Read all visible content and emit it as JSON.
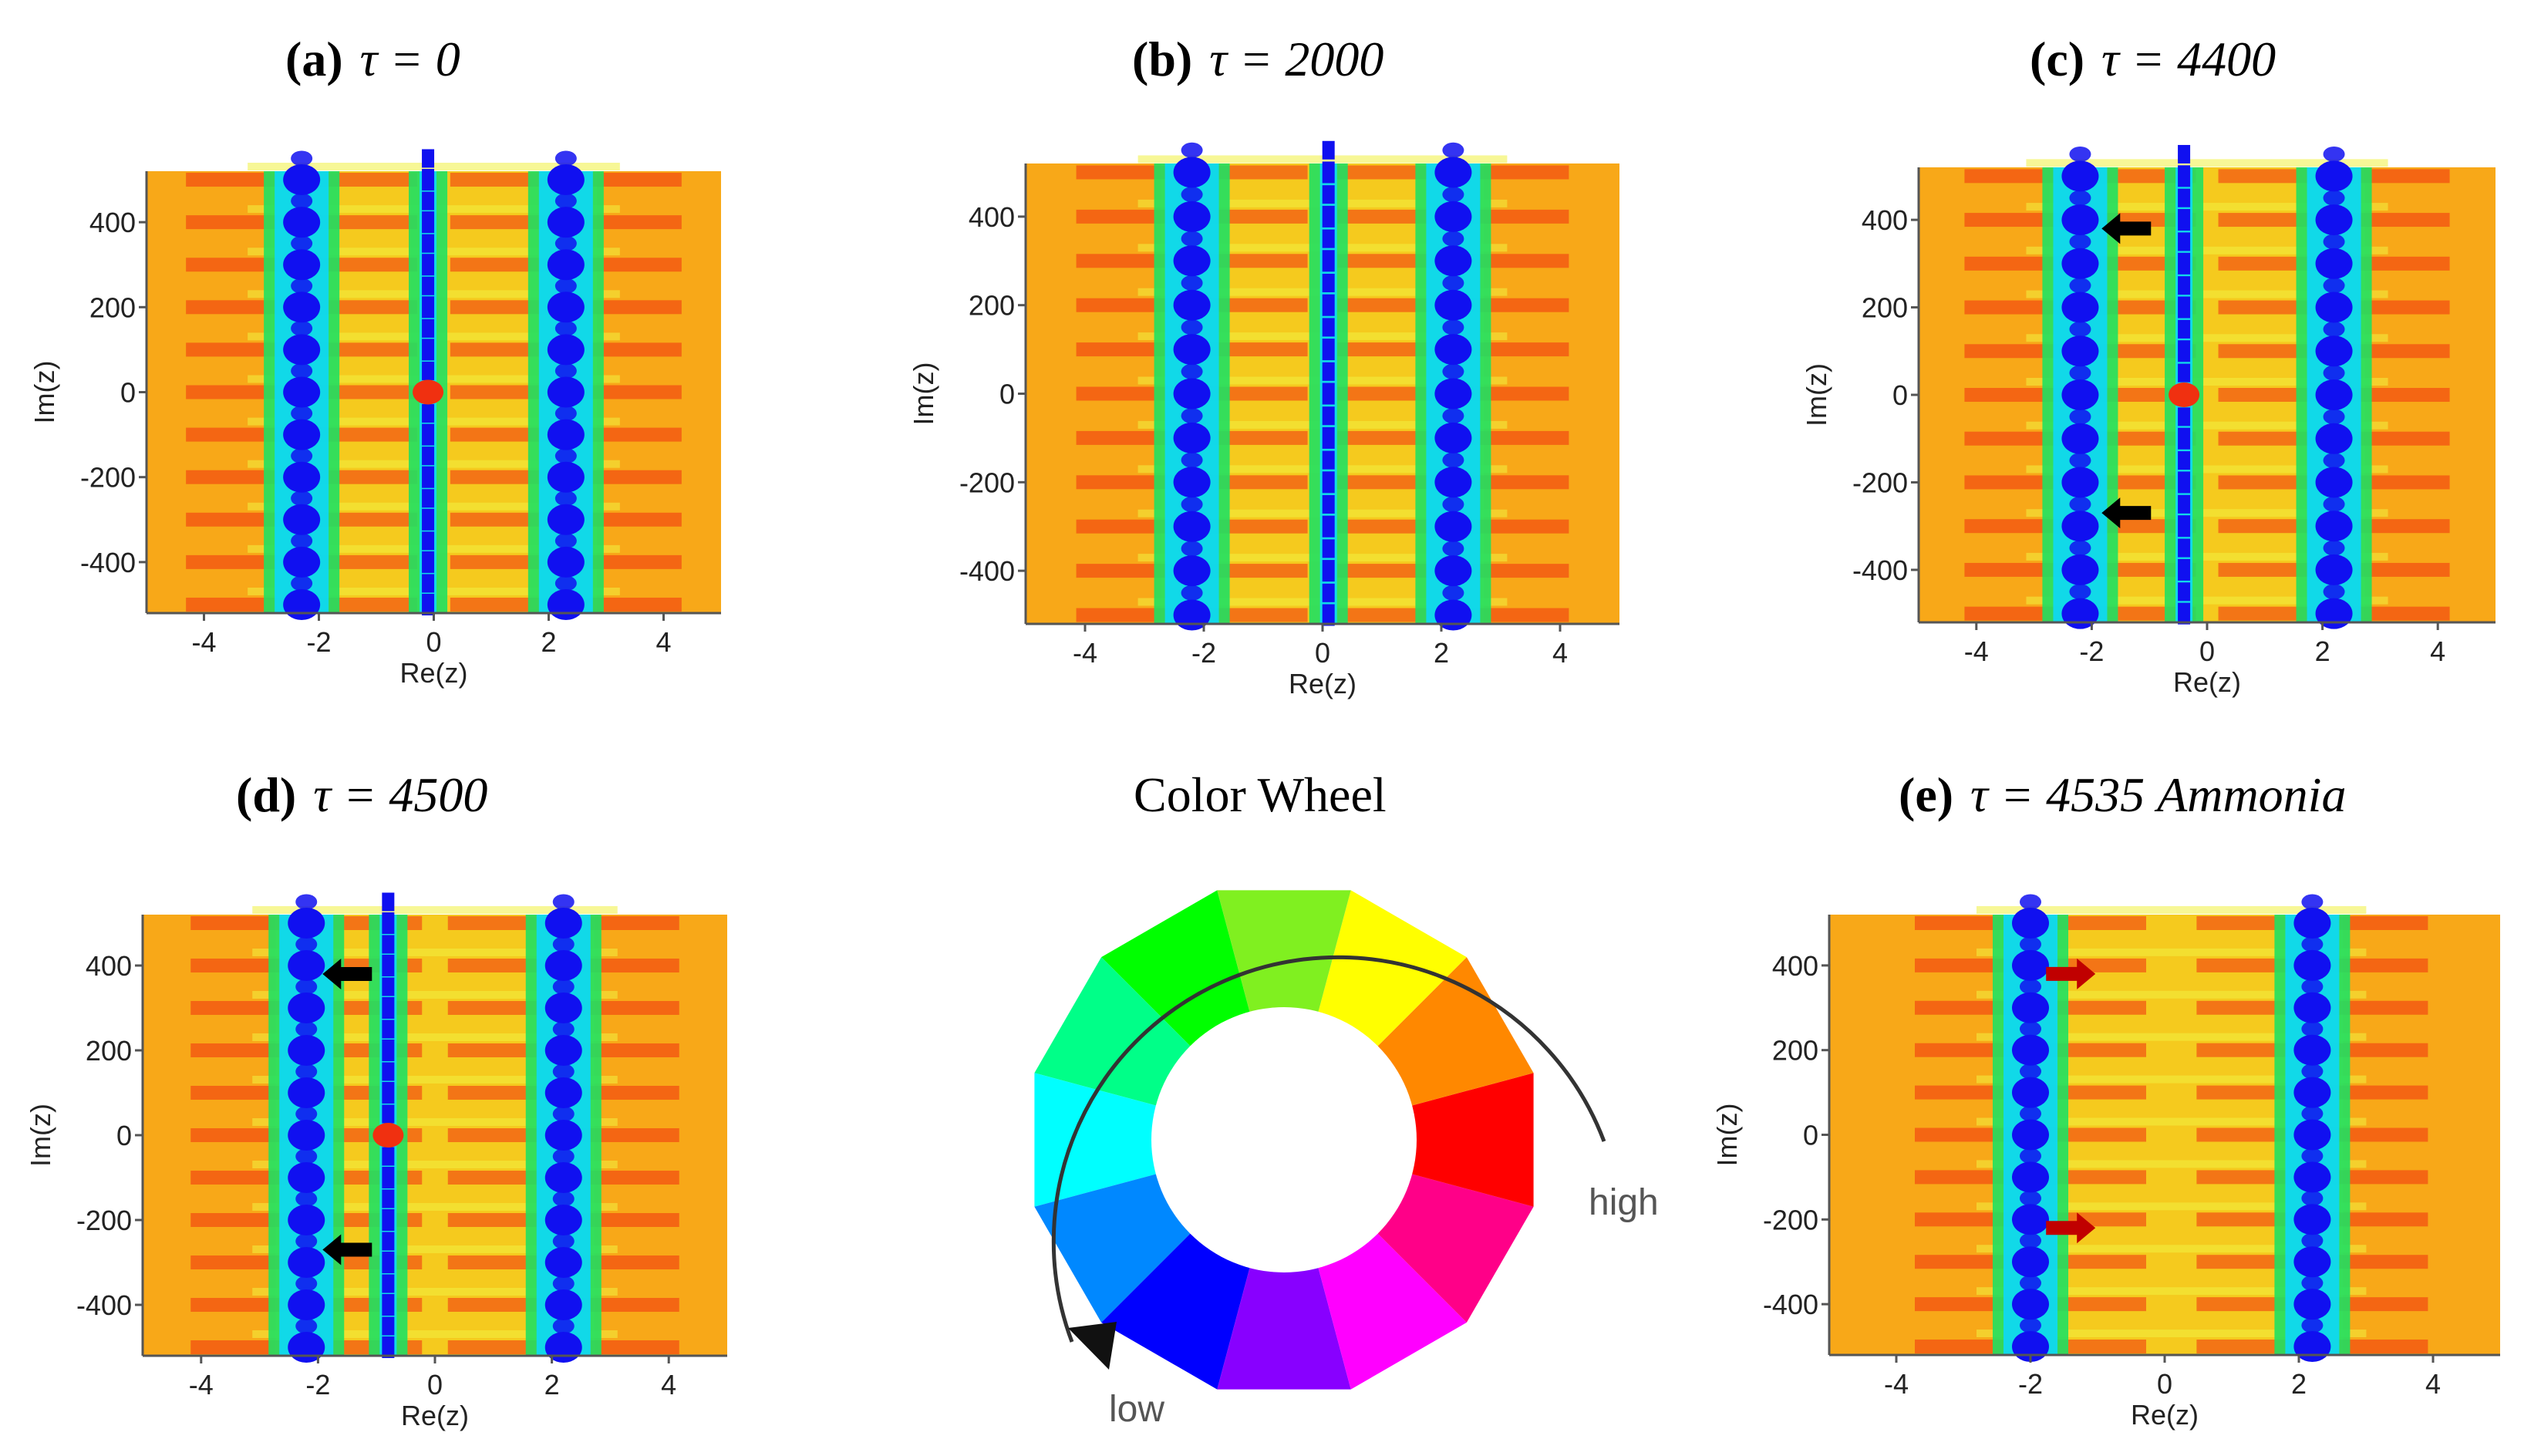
{
  "figure": {
    "panels": [
      {
        "id": "a",
        "label": "(a)",
        "tau": "τ = 0"
      },
      {
        "id": "b",
        "label": "(b)",
        "tau": "τ = 2000"
      },
      {
        "id": "c",
        "label": "(c)",
        "tau": "τ = 4400"
      },
      {
        "id": "d",
        "label": "(d)",
        "tau": "τ = 4500"
      },
      {
        "id": "e",
        "label": "(e)",
        "tau": "τ = 4535  Ammonia"
      }
    ],
    "wheel": {
      "title": "Color Wheel",
      "high_label": "high",
      "low_label": "low"
    }
  },
  "chart_data": [
    {
      "type": "heatmap",
      "panel": "a",
      "title": "(a) τ = 0",
      "xlabel": "Re(z)",
      "ylabel": "Im(z)",
      "xlim": [
        -5,
        5
      ],
      "ylim": [
        -520,
        520
      ],
      "xticks": [
        -4,
        -2,
        0,
        2,
        4
      ],
      "xtick_labels": [
        "-4",
        "-2",
        "0",
        "2",
        "4"
      ],
      "yticks": [
        400,
        200,
        0,
        -200,
        -400
      ],
      "ytick_labels": [
        "400",
        "200",
        "0",
        "-200",
        "-400"
      ],
      "vortex_columns_re": [
        -2.3,
        -0.1,
        2.3
      ],
      "arrows": []
    },
    {
      "type": "heatmap",
      "panel": "b",
      "title": "(b) τ = 2000",
      "xlabel": "Re(z)",
      "ylabel": "Im(z)",
      "xlim": [
        -5,
        5
      ],
      "ylim": [
        -520,
        520
      ],
      "xticks": [
        -4,
        -2,
        0,
        2,
        4
      ],
      "xtick_labels": [
        "-4",
        "-2",
        "0",
        "2",
        "4"
      ],
      "yticks": [
        400,
        200,
        0,
        -200,
        -400
      ],
      "ytick_labels": [
        "400",
        "200",
        "0",
        "-200",
        "-400"
      ],
      "vortex_columns_re": [
        -2.2,
        0.1,
        2.2
      ],
      "arrows": []
    },
    {
      "type": "heatmap",
      "panel": "c",
      "title": "(c) τ = 4400",
      "xlabel": "Re(z)",
      "ylabel": "Im(z)",
      "xlim": [
        -5,
        5
      ],
      "ylim": [
        -520,
        520
      ],
      "xticks": [
        -4,
        -2,
        0,
        2,
        4
      ],
      "xtick_labels": [
        "-4",
        "-2",
        "0",
        "2",
        "4"
      ],
      "yticks": [
        400,
        200,
        0,
        -200,
        -400
      ],
      "ytick_labels": [
        "400",
        "200",
        "0",
        "-200",
        "-400"
      ],
      "vortex_columns_re": [
        -2.2,
        -0.4,
        2.2
      ],
      "arrows": [
        {
          "re": -1.4,
          "im": 380,
          "direction": "left",
          "color": "#000000"
        },
        {
          "re": -1.4,
          "im": -270,
          "direction": "left",
          "color": "#000000"
        }
      ]
    },
    {
      "type": "heatmap",
      "panel": "d",
      "title": "(d) τ = 4500",
      "xlabel": "Re(z)",
      "ylabel": "Im(z)",
      "xlim": [
        -5,
        5
      ],
      "ylim": [
        -520,
        520
      ],
      "xticks": [
        -4,
        -2,
        0,
        2,
        4
      ],
      "xtick_labels": [
        "-4",
        "-2",
        "0",
        "2",
        "4"
      ],
      "yticks": [
        400,
        200,
        0,
        -200,
        -400
      ],
      "ytick_labels": [
        "400",
        "200",
        "0",
        "-200",
        "-400"
      ],
      "vortex_columns_re": [
        -2.2,
        -0.8,
        2.2
      ],
      "arrows": [
        {
          "re": -1.5,
          "im": 380,
          "direction": "left",
          "color": "#000000"
        },
        {
          "re": -1.5,
          "im": -270,
          "direction": "left",
          "color": "#000000"
        }
      ]
    },
    {
      "type": "heatmap",
      "panel": "e",
      "title": "(e) τ = 4535 Ammonia",
      "xlabel": "Re(z)",
      "ylabel": "Im(z)",
      "xlim": [
        -5,
        5
      ],
      "ylim": [
        -520,
        520
      ],
      "xticks": [
        -4,
        -2,
        0,
        2,
        4
      ],
      "xtick_labels": [
        "-4",
        "-2",
        "0",
        "2",
        "4"
      ],
      "yticks": [
        400,
        200,
        0,
        -200,
        -400
      ],
      "ytick_labels": [
        "400",
        "200",
        "0",
        "-200",
        "-400"
      ],
      "vortex_columns_re": [
        -2.0,
        2.2
      ],
      "arrows": [
        {
          "re": -1.4,
          "im": 380,
          "direction": "right",
          "color": "#c00000"
        },
        {
          "re": -1.4,
          "im": -220,
          "direction": "right",
          "color": "#c00000"
        }
      ]
    }
  ],
  "colors": {
    "background": "#f8a818",
    "mid_yellow": "#f5d020",
    "bright_yellow": "#f0f040",
    "red": "#f03010",
    "green": "#20e060",
    "cyan": "#10d8f0",
    "blue": "#1010f0",
    "arrow_black": "#000000",
    "arrow_red": "#c00000"
  },
  "wheel_segments": [
    "#80f020",
    "#ffff00",
    "#ff8800",
    "#ff0000",
    "#ff0088",
    "#ff00ff",
    "#8800ff",
    "#0000ff",
    "#0088ff",
    "#00ffff",
    "#00ff88",
    "#00ff00"
  ]
}
